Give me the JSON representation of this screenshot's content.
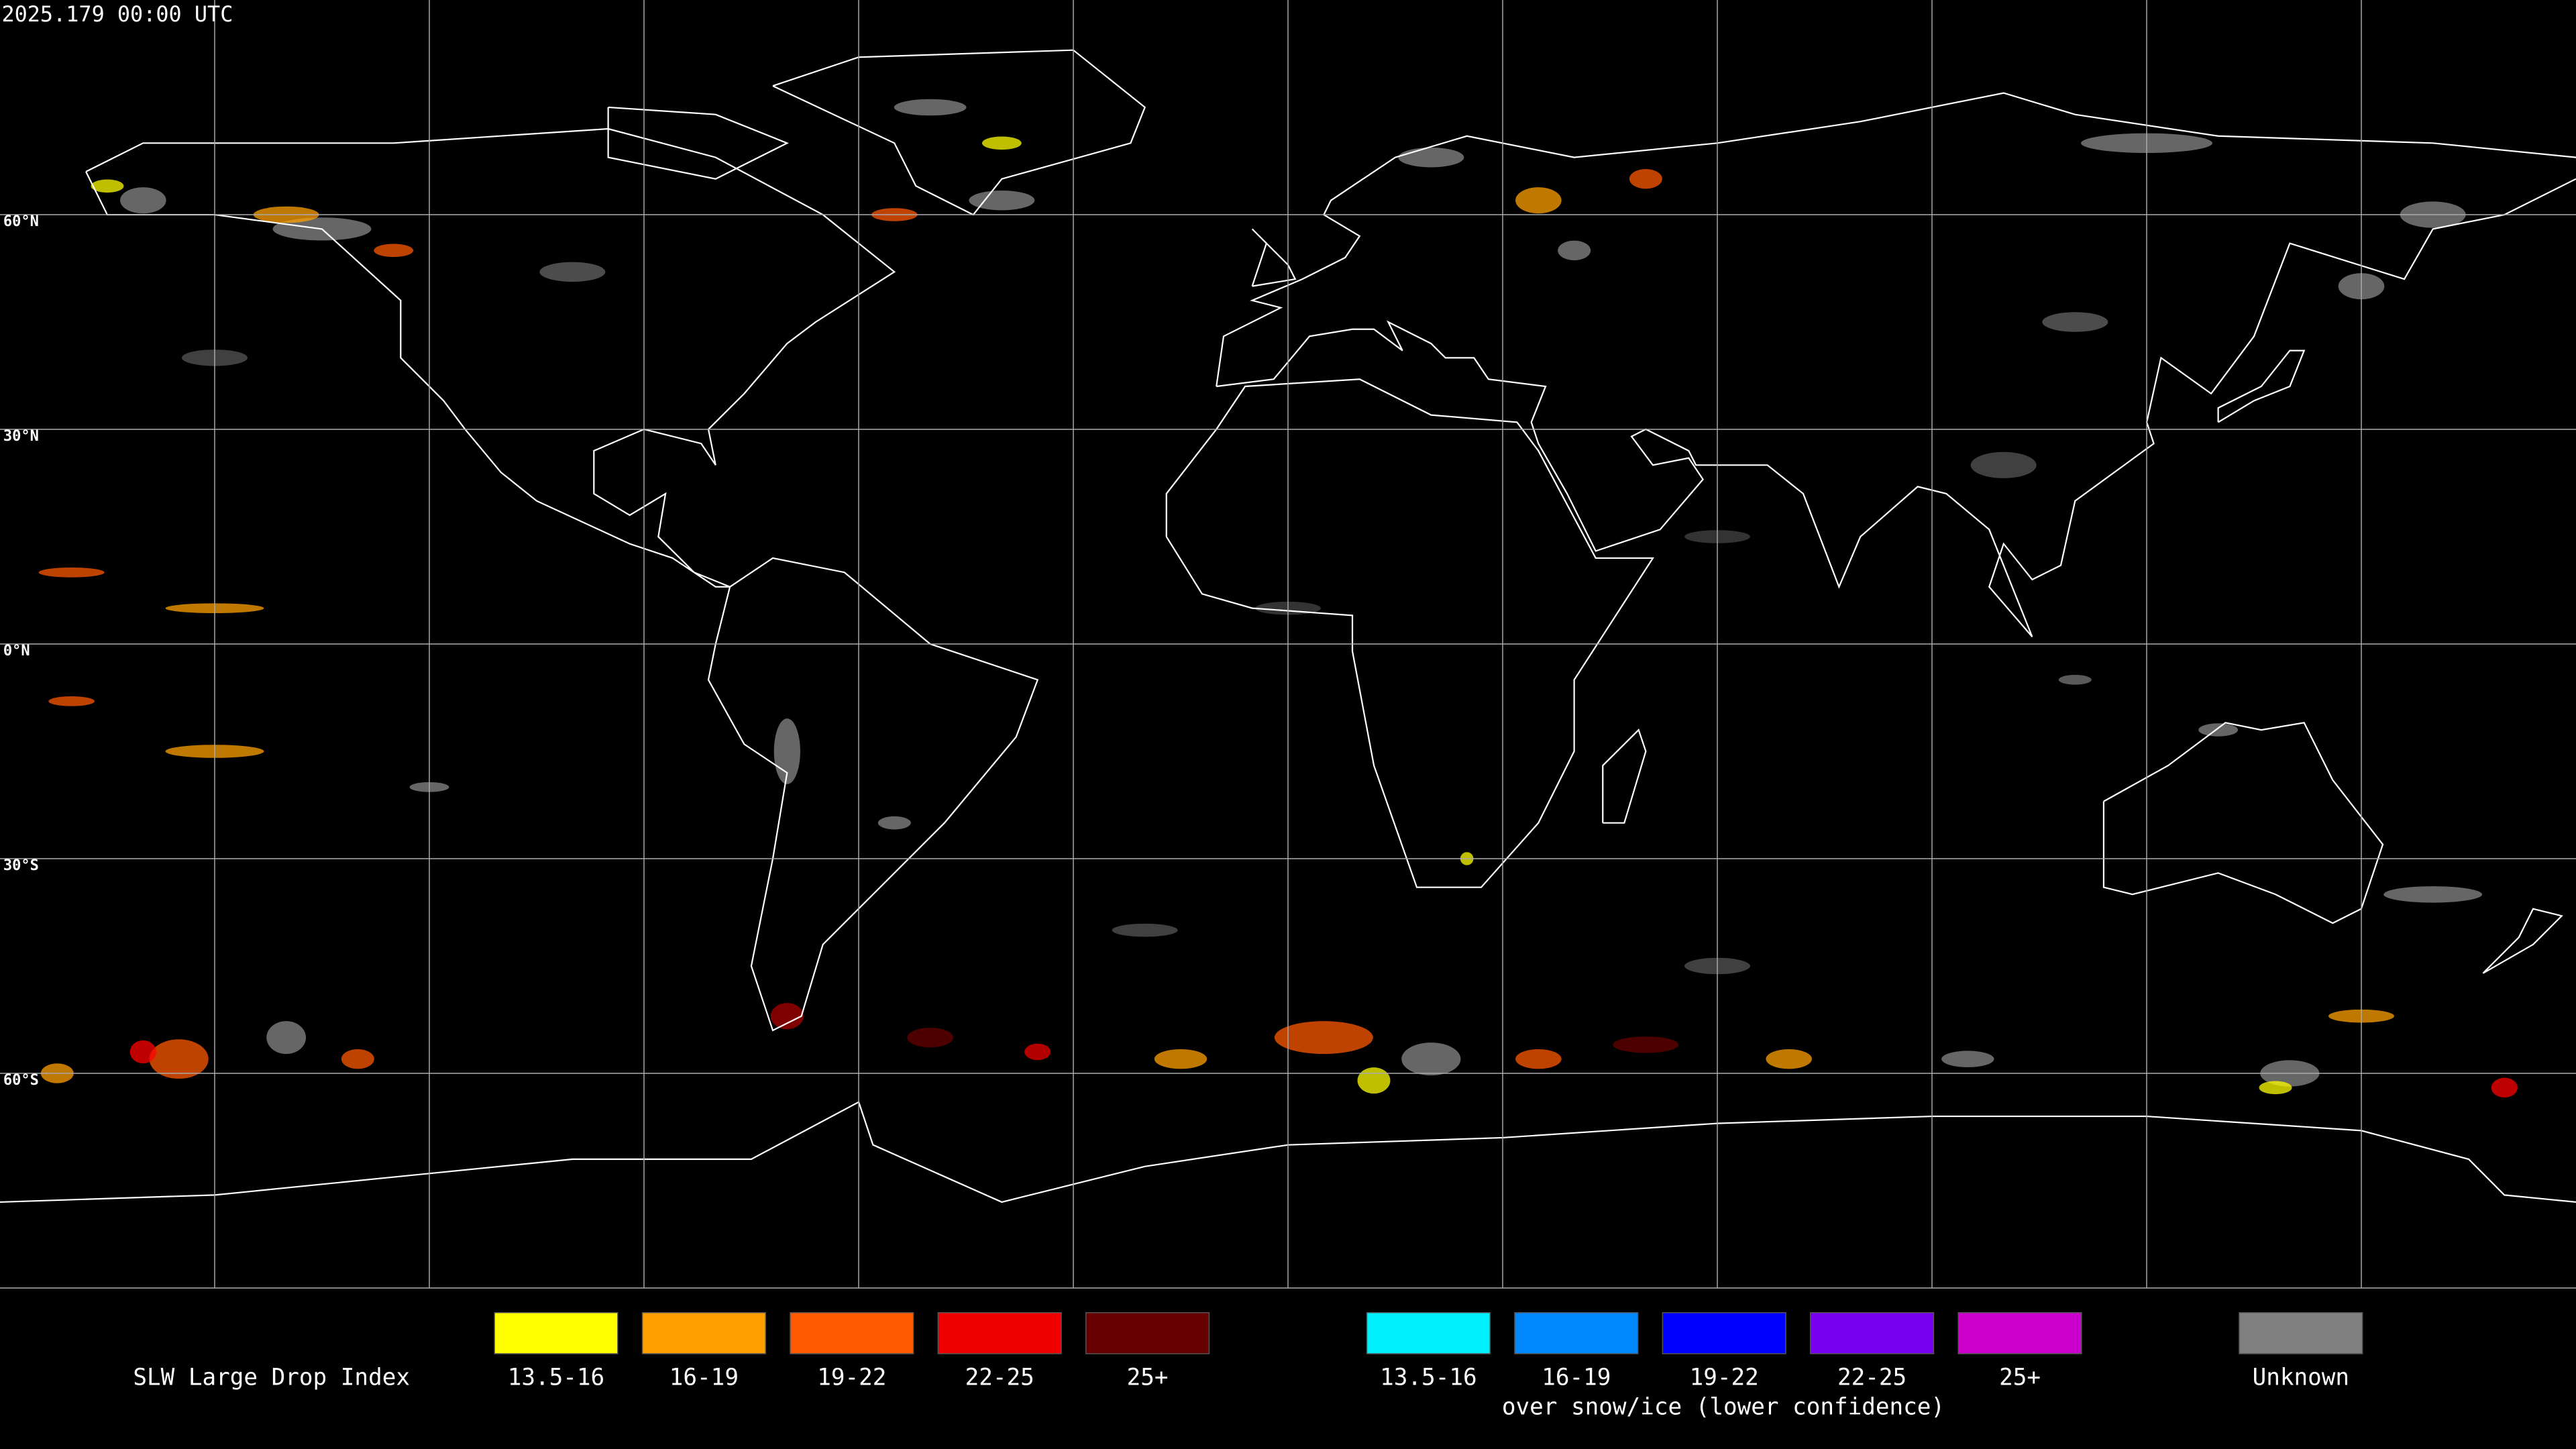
{
  "header": {
    "timestamp": "2025.179 00:00 UTC"
  },
  "map": {
    "latitude_labels": [
      "60°N",
      "30°N",
      "0°N",
      "30°S",
      "60°S"
    ]
  },
  "legend": {
    "title": "SLW Large Drop Index",
    "groups": [
      {
        "items": [
          {
            "label": "13.5-16",
            "color": "#ffff00"
          },
          {
            "label": "16-19",
            "color": "#ffa000"
          },
          {
            "label": "19-22",
            "color": "#ff5a00"
          },
          {
            "label": "22-25",
            "color": "#ee0000"
          },
          {
            "label": "25+",
            "color": "#660000"
          }
        ]
      },
      {
        "caption": "over snow/ice (lower confidence)",
        "items": [
          {
            "label": "13.5-16",
            "color": "#00f0ff"
          },
          {
            "label": "16-19",
            "color": "#0088ff"
          },
          {
            "label": "19-22",
            "color": "#0000ff"
          },
          {
            "label": "22-25",
            "color": "#7700ee"
          },
          {
            "label": "25+",
            "color": "#cc00cc"
          }
        ]
      }
    ],
    "unknown": {
      "label": "Unknown",
      "color": "#808080"
    }
  }
}
